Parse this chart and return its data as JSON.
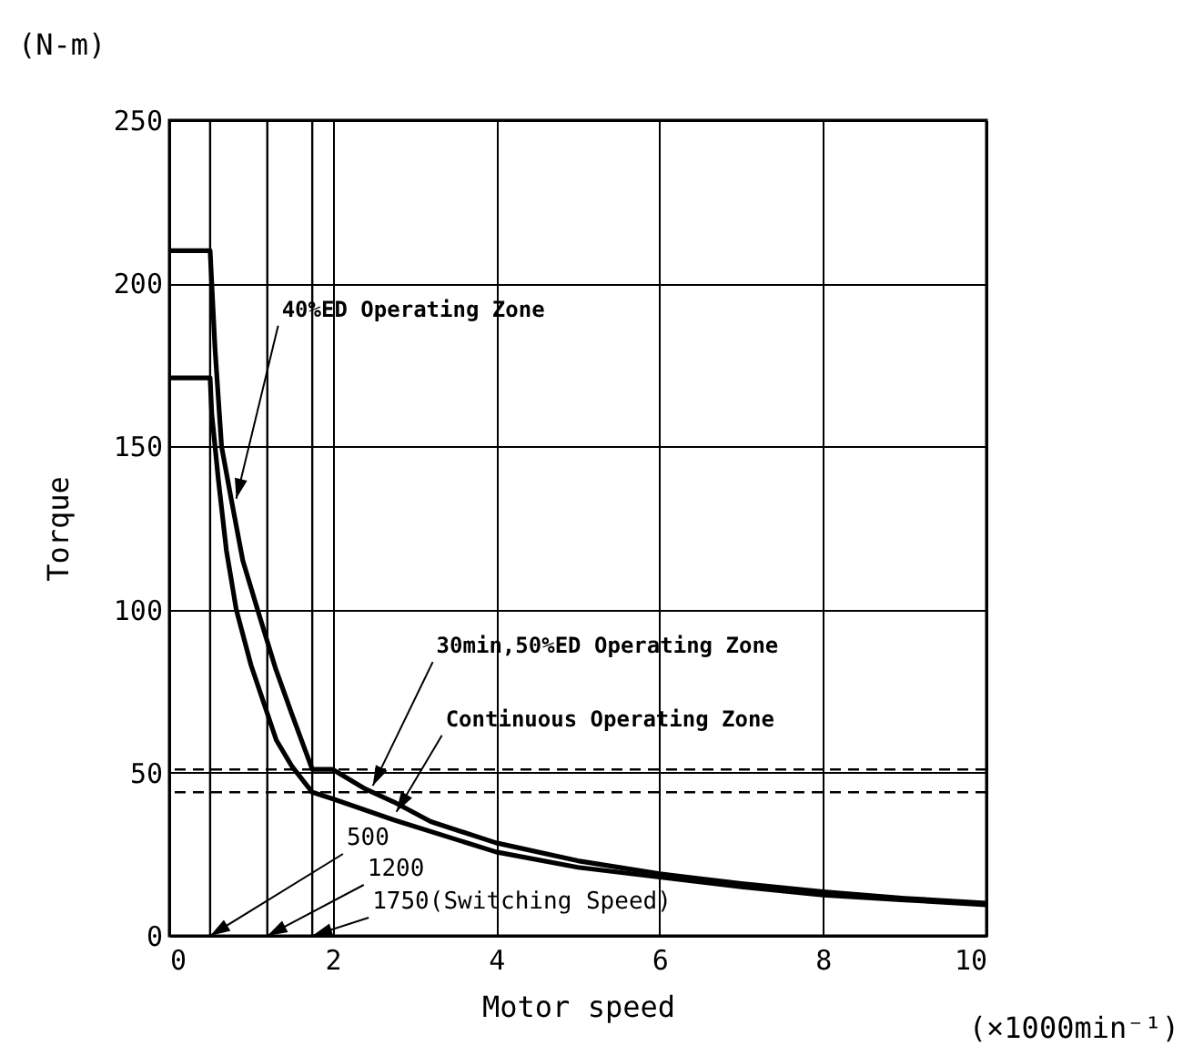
{
  "chart_data": {
    "type": "line",
    "xlabel": "Motor speed",
    "ylabel": "Torque",
    "xlim": [
      0,
      10
    ],
    "xticks": [
      0,
      2,
      4,
      6,
      8,
      10
    ],
    "ylim": [
      0,
      250
    ],
    "yticks": [
      0,
      50,
      100,
      150,
      200,
      250
    ],
    "grid": true,
    "line_style": "solid",
    "series": [
      {
        "color": "#000000",
        "x": [
          0,
          0.5,
          0.52,
          0.56,
          0.64,
          0.75,
          0.9,
          1.08,
          1.3,
          1.5,
          1.75,
          2.0,
          2.4,
          2.75,
          3.2,
          4,
          5,
          6,
          7,
          8,
          9,
          10
        ],
        "values": [
          210,
          210,
          200,
          180,
          150,
          135,
          115,
          100,
          82,
          68,
          51,
          51,
          45,
          41,
          35,
          28.5,
          23,
          19,
          16,
          13.5,
          11.5,
          10
        ]
      },
      {
        "color": "#000000",
        "x": [
          0,
          0.5,
          0.52,
          0.6,
          0.7,
          0.82,
          1.0,
          1.31,
          1.5,
          1.75,
          2.0,
          2.75,
          4,
          5,
          6,
          7,
          8,
          9,
          10
        ],
        "values": [
          171,
          171,
          160,
          140,
          118,
          100,
          83,
          60,
          52,
          44,
          42,
          35.5,
          25.7,
          21,
          18,
          15,
          12.5,
          11,
          9.5
        ]
      }
    ],
    "ref_lines": [
      {
        "axis": "y",
        "value": 51,
        "line_style": "dashed"
      },
      {
        "axis": "y",
        "value": 44,
        "line_style": "dashed"
      },
      {
        "axis": "x",
        "value": 0.5,
        "label": "500"
      },
      {
        "axis": "x",
        "value": 1.2,
        "label": "1200"
      },
      {
        "axis": "x",
        "value": 1.75,
        "label": "1750(Switching Speed)"
      }
    ],
    "annotations": [
      "(N-m)",
      "(×1000min⁻¹)",
      {
        "text": "40%ED Operating Zone",
        "x": 0.82,
        "y": 134
      },
      {
        "text": "30min,50%ED Operating Zone",
        "x": 2.49,
        "y": 46
      },
      {
        "text": "Continuous Operating Zone",
        "x": 2.78,
        "y": 38
      }
    ]
  }
}
